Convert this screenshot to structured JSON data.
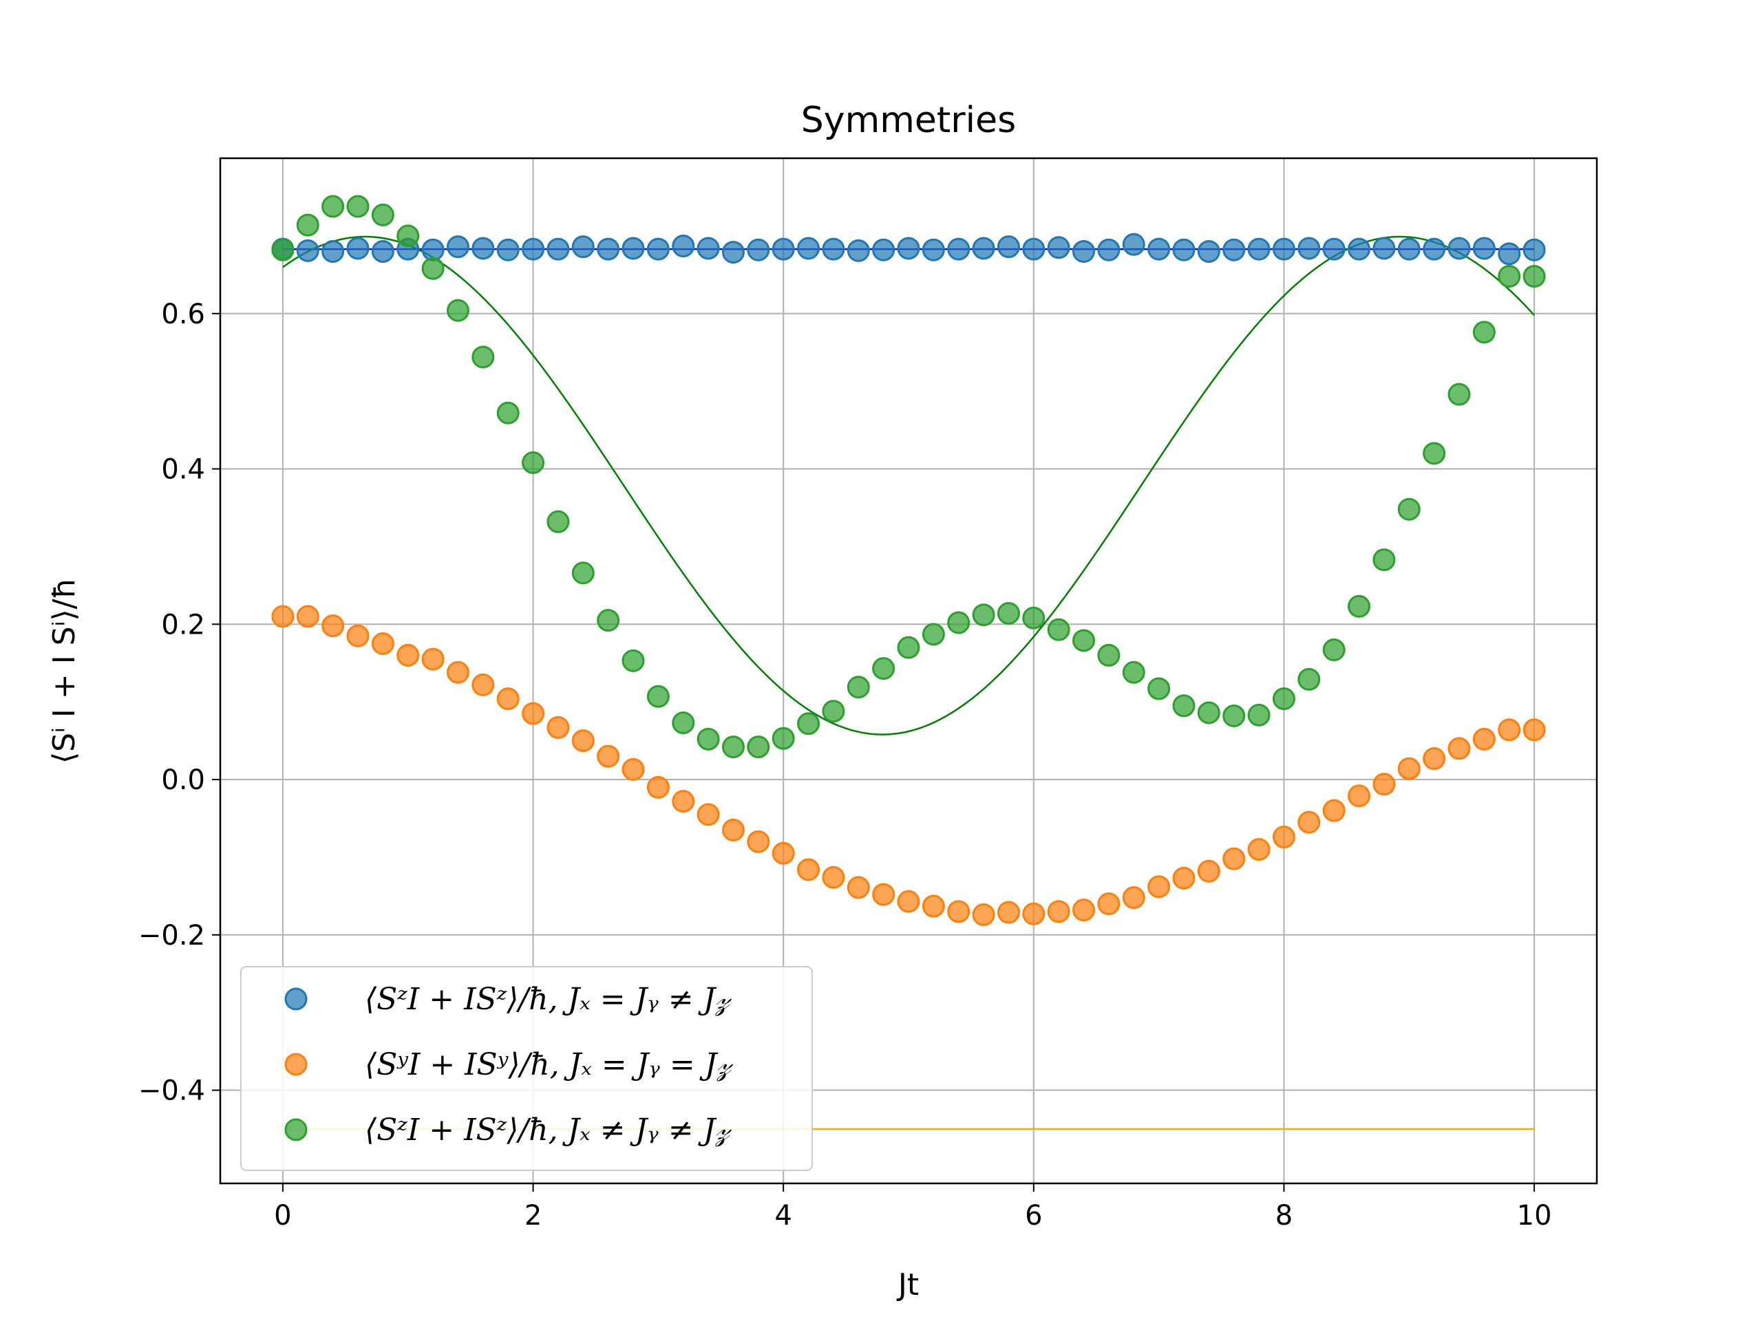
{
  "chart_data": {
    "type": "scatter",
    "title": "Symmetries",
    "xlabel": "Jt",
    "ylabel": "⟨Sⁱ I + I Sⁱ⟩/ħ",
    "xlim": [
      -0.5,
      10.5
    ],
    "ylim": [
      -0.52,
      0.8
    ],
    "xticks": [
      0,
      2,
      4,
      6,
      8,
      10
    ],
    "xtick_labels": [
      "0",
      "2",
      "4",
      "6",
      "8",
      "10"
    ],
    "yticks": [
      -0.4,
      -0.2,
      0.0,
      0.2,
      0.4,
      0.6
    ],
    "ytick_labels": [
      "−0.4",
      "−0.2",
      "0.0",
      "0.2",
      "0.4",
      "0.6"
    ],
    "grid": true,
    "legend_position": "lower-left",
    "x": [
      0.0,
      0.2,
      0.4,
      0.6,
      0.8,
      1.0,
      1.2,
      1.4,
      1.6,
      1.8,
      2.0,
      2.2,
      2.4,
      2.6,
      2.8,
      3.0,
      3.2,
      3.4,
      3.6,
      3.8,
      4.0,
      4.2,
      4.4,
      4.6,
      4.8,
      5.0,
      5.2,
      5.4,
      5.6,
      5.8,
      6.0,
      6.2,
      6.4,
      6.6,
      6.8,
      7.0,
      7.2,
      7.4,
      7.6,
      7.8,
      8.0,
      8.2,
      8.4,
      8.6,
      8.8,
      9.0,
      9.2,
      9.4,
      9.6,
      9.8,
      10.0
    ],
    "series": [
      {
        "name": "⟨SᶻI + ISᶻ⟩/ħ, Jₓ = Jᵧ ≠ J𝓏",
        "color": "#1f77b4",
        "marker": "circle",
        "values": [
          0.683,
          0.681,
          0.68,
          0.684,
          0.68,
          0.683,
          0.682,
          0.686,
          0.684,
          0.682,
          0.683,
          0.683,
          0.686,
          0.683,
          0.684,
          0.683,
          0.687,
          0.684,
          0.679,
          0.682,
          0.683,
          0.684,
          0.683,
          0.681,
          0.682,
          0.684,
          0.682,
          0.683,
          0.684,
          0.686,
          0.683,
          0.685,
          0.68,
          0.682,
          0.689,
          0.683,
          0.682,
          0.68,
          0.682,
          0.683,
          0.683,
          0.684,
          0.683,
          0.683,
          0.684,
          0.683,
          0.683,
          0.684,
          0.684,
          0.677,
          0.682
        ]
      },
      {
        "name": "⟨SʸI + ISʸ⟩/ħ, Jₓ = Jᵧ = J𝓏",
        "color": "#ff7f0e",
        "marker": "circle",
        "values": [
          0.21,
          0.21,
          0.198,
          0.185,
          0.175,
          0.16,
          0.155,
          0.138,
          0.122,
          0.104,
          0.085,
          0.067,
          0.05,
          0.03,
          0.013,
          -0.01,
          -0.028,
          -0.045,
          -0.065,
          -0.08,
          -0.095,
          -0.116,
          -0.126,
          -0.139,
          -0.148,
          -0.157,
          -0.163,
          -0.17,
          -0.174,
          -0.171,
          -0.173,
          -0.17,
          -0.168,
          -0.16,
          -0.152,
          -0.138,
          -0.127,
          -0.118,
          -0.102,
          -0.09,
          -0.074,
          -0.055,
          -0.04,
          -0.021,
          -0.006,
          0.014,
          0.027,
          0.04,
          0.052,
          0.064,
          0.064
        ]
      },
      {
        "name": "⟨SᶻI + ISᶻ⟩/ħ, Jₓ ≠ Jᵧ ≠ J𝓏",
        "color": "#2ca02c",
        "marker": "circle",
        "values": [
          0.682,
          0.714,
          0.738,
          0.738,
          0.727,
          0.7,
          0.658,
          0.604,
          0.544,
          0.472,
          0.408,
          0.332,
          0.266,
          0.205,
          0.153,
          0.107,
          0.073,
          0.052,
          0.042,
          0.042,
          0.053,
          0.072,
          0.088,
          0.119,
          0.143,
          0.17,
          0.187,
          0.202,
          0.212,
          0.214,
          0.208,
          0.193,
          0.179,
          0.16,
          0.138,
          0.117,
          0.095,
          0.086,
          0.082,
          0.083,
          0.104,
          0.129,
          0.167,
          0.223,
          0.283,
          0.348,
          0.42,
          0.496,
          0.576,
          0.648,
          0.648
        ]
      }
    ],
    "lines": [
      {
        "color": "#0000ff",
        "style": "flat",
        "value": 0.683,
        "x_range": [
          0,
          10
        ]
      },
      {
        "color": "#ffa500",
        "style": "flat",
        "value": -0.45,
        "x_range": [
          0,
          10
        ]
      },
      {
        "color": "#008000",
        "style": "cosine",
        "mean": 0.3785,
        "amplitude": 0.3205,
        "omega": 0.76,
        "phase": 0.5,
        "x_range": [
          0,
          10
        ]
      }
    ]
  }
}
